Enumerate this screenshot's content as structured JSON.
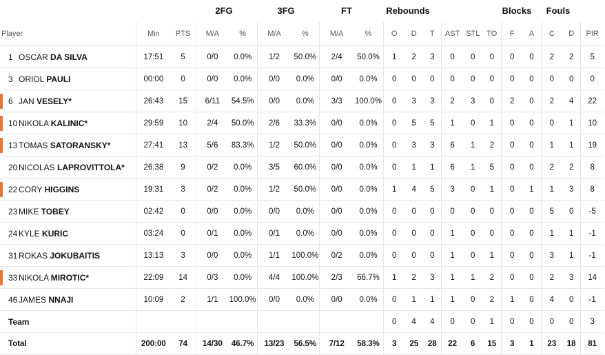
{
  "groups": {
    "fg2": "2FG",
    "fg3": "3FG",
    "ft": "FT",
    "reb": "Rebounds",
    "blk": "Blocks",
    "fouls": "Fouls"
  },
  "headers": [
    "Player",
    "Min",
    "PTS",
    "M/A",
    "%",
    "M/A",
    "%",
    "M/A",
    "%",
    "O",
    "D",
    "T",
    "AST",
    "STL",
    "TO",
    "F",
    "A",
    "C",
    "D",
    "PIR"
  ],
  "rows": [
    {
      "num": "1",
      "first": "OSCAR",
      "last": "DA SILVA",
      "starter": false,
      "stats": [
        "17:51",
        "5",
        "0/0",
        "0.0%",
        "1/2",
        "50.0%",
        "2/4",
        "50.0%",
        "1",
        "2",
        "3",
        "0",
        "0",
        "0",
        "0",
        "0",
        "2",
        "2",
        "5"
      ]
    },
    {
      "num": "3",
      "first": "ORIOL",
      "last": "PAULI",
      "starter": false,
      "stats": [
        "00:00",
        "0",
        "0/0",
        "0.0%",
        "0/0",
        "0.0%",
        "0/0",
        "0.0%",
        "0",
        "0",
        "0",
        "0",
        "0",
        "0",
        "0",
        "0",
        "0",
        "0",
        "0"
      ]
    },
    {
      "num": "6",
      "first": "JAN",
      "last": "VESELY*",
      "starter": true,
      "stats": [
        "26:43",
        "15",
        "6/11",
        "54.5%",
        "0/0",
        "0.0%",
        "3/3",
        "100.0%",
        "0",
        "3",
        "3",
        "2",
        "3",
        "0",
        "2",
        "0",
        "2",
        "4",
        "22"
      ]
    },
    {
      "num": "10",
      "first": "NIKOLA",
      "last": "KALINIC*",
      "starter": true,
      "stats": [
        "29:59",
        "10",
        "2/4",
        "50.0%",
        "2/6",
        "33.3%",
        "0/0",
        "0.0%",
        "0",
        "5",
        "5",
        "1",
        "0",
        "1",
        "0",
        "0",
        "0",
        "1",
        "10"
      ]
    },
    {
      "num": "13",
      "first": "TOMAS",
      "last": "SATORANSKY*",
      "starter": true,
      "stats": [
        "27:41",
        "13",
        "5/6",
        "83.3%",
        "1/2",
        "50.0%",
        "0/0",
        "0.0%",
        "0",
        "3",
        "3",
        "6",
        "1",
        "2",
        "0",
        "0",
        "1",
        "1",
        "19"
      ]
    },
    {
      "num": "20",
      "first": "NICOLAS",
      "last": "LAPROVITTOLA*",
      "starter": false,
      "stats": [
        "26:38",
        "9",
        "0/2",
        "0.0%",
        "3/5",
        "60.0%",
        "0/0",
        "0.0%",
        "0",
        "1",
        "1",
        "6",
        "1",
        "5",
        "0",
        "0",
        "2",
        "2",
        "8"
      ]
    },
    {
      "num": "22",
      "first": "CORY",
      "last": "HIGGINS",
      "starter": true,
      "stats": [
        "19:31",
        "3",
        "0/2",
        "0.0%",
        "1/2",
        "50.0%",
        "0/0",
        "0.0%",
        "1",
        "4",
        "5",
        "3",
        "0",
        "1",
        "0",
        "1",
        "1",
        "3",
        "8"
      ]
    },
    {
      "num": "23",
      "first": "MIKE",
      "last": "TOBEY",
      "starter": false,
      "stats": [
        "02:42",
        "0",
        "0/0",
        "0.0%",
        "0/0",
        "0.0%",
        "0/0",
        "0.0%",
        "0",
        "0",
        "0",
        "0",
        "0",
        "0",
        "0",
        "0",
        "5",
        "0",
        "-5"
      ]
    },
    {
      "num": "24",
      "first": "KYLE",
      "last": "KURIC",
      "starter": false,
      "stats": [
        "03:24",
        "0",
        "0/1",
        "0.0%",
        "0/1",
        "0.0%",
        "0/0",
        "0.0%",
        "0",
        "0",
        "0",
        "1",
        "0",
        "0",
        "0",
        "0",
        "1",
        "1",
        "-1"
      ]
    },
    {
      "num": "31",
      "first": "ROKAS",
      "last": "JOKUBAITIS",
      "starter": false,
      "stats": [
        "13:13",
        "3",
        "0/0",
        "0.0%",
        "1/1",
        "100.0%",
        "0/2",
        "0.0%",
        "0",
        "0",
        "0",
        "1",
        "0",
        "1",
        "0",
        "0",
        "3",
        "1",
        "-1"
      ]
    },
    {
      "num": "33",
      "first": "NIKOLA",
      "last": "MIROTIC*",
      "starter": true,
      "stats": [
        "22:09",
        "14",
        "0/3",
        "0.0%",
        "4/4",
        "100.0%",
        "2/3",
        "66.7%",
        "1",
        "2",
        "3",
        "1",
        "1",
        "2",
        "0",
        "0",
        "2",
        "3",
        "14"
      ]
    },
    {
      "num": "46",
      "first": "JAMES",
      "last": "NNAJI",
      "starter": false,
      "stats": [
        "10:09",
        "2",
        "1/1",
        "100.0%",
        "0/0",
        "0.0%",
        "0/0",
        "0.0%",
        "0",
        "1",
        "1",
        "1",
        "0",
        "2",
        "1",
        "0",
        "4",
        "0",
        "-1"
      ]
    }
  ],
  "team": {
    "label": "Team",
    "stats": [
      "",
      "",
      "",
      "",
      "",
      "",
      "",
      "",
      "0",
      "4",
      "4",
      "0",
      "0",
      "1",
      "0",
      "0",
      "0",
      "0",
      "3"
    ]
  },
  "total": {
    "label": "Total",
    "stats": [
      "200:00",
      "74",
      "14/30",
      "46.7%",
      "13/23",
      "56.5%",
      "7/12",
      "58.3%",
      "3",
      "25",
      "28",
      "22",
      "6",
      "15",
      "3",
      "1",
      "23",
      "18",
      "81"
    ]
  },
  "accent_color": "#e8763b"
}
